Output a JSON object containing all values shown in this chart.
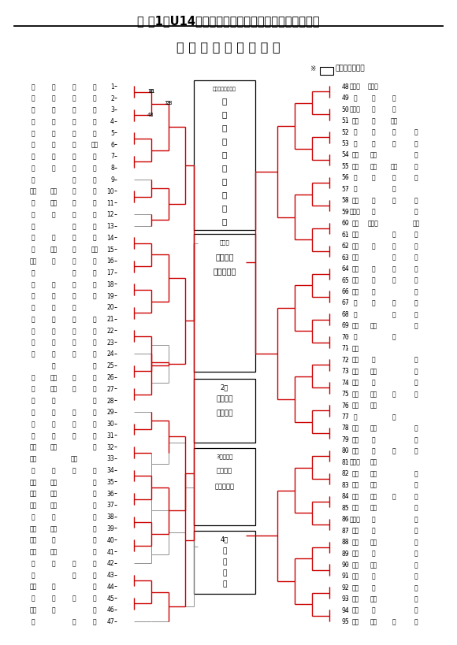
{
  "title": "兼 第1回U14秋季バスケットボール大会東部地区予選",
  "subtitle": "《 中 学 校 女 子 の 部 》",
  "note_text": "が県大会出場校",
  "center_winner": "春\n日\n部\n市\n立\n豊\n野\n中\n学\n校",
  "center_winner_label": "関東大会出場校枠",
  "second_label": "2位",
  "second_school": "越谷市立\n西中学校",
  "third_label": "3位決定戦",
  "third_school": "越谷市立\n富士中学校",
  "fourth_label": "4位",
  "fourth_school": "越\n谷\n富\n士",
  "semi_label": "準優勝",
  "semi_school": "松伏町立\n松伏中学校",
  "left_teams": [
    [
      "越",
      "谷",
      "中",
      "央"
    ],
    [
      "三",
      "郷",
      "瑞",
      "穂"
    ],
    [
      "春",
      "日",
      "部",
      "東"
    ],
    [
      "草",
      "加",
      "谷",
      "塚"
    ],
    [
      "久",
      "喜",
      "太",
      "東"
    ],
    [
      "春",
      "日",
      "部",
      "豊野"
    ],
    [
      "草",
      "加",
      "瀬",
      "崎"
    ],
    [
      "越",
      "谷",
      "北",
      "隠"
    ],
    [
      "行",
      "",
      "田",
      "忍"
    ],
    [
      "越谷",
      "獨協",
      "埼",
      "玉"
    ],
    [
      "蓮",
      "田黒",
      "浜",
      "西"
    ],
    [
      "久",
      "喜",
      "善",
      "蒲"
    ],
    [
      "三",
      "",
      "郷",
      "南"
    ],
    [
      "八",
      "湖",
      "大",
      "原"
    ],
    [
      "春",
      "日部",
      "緑",
      "稲田"
    ],
    [
      "三郷",
      "早",
      "稲",
      "田"
    ],
    [
      "草",
      "",
      "加",
      "栄"
    ],
    [
      "松",
      "伏",
      "松",
      "伏"
    ],
    [
      "蓮",
      "田",
      "黒",
      "浜"
    ],
    [
      "越",
      "谷",
      "北",
      ""
    ],
    [
      "草",
      "加",
      "川",
      "柳"
    ],
    [
      "三",
      "郷",
      "前",
      "川"
    ],
    [
      "越",
      "谷",
      "大",
      "袋"
    ],
    [
      "越",
      "谷",
      "富",
      "士"
    ],
    [
      "",
      "生",
      "",
      "南"
    ],
    [
      "春",
      "日部",
      "武",
      "里"
    ],
    [
      "久",
      "喜栗",
      "橋",
      "西"
    ],
    [
      "越",
      "谷",
      "",
      "南"
    ],
    [
      "杉",
      "戸",
      "広",
      "島"
    ],
    [
      "加",
      "須",
      "明",
      "和"
    ],
    [
      "宮",
      "代",
      "百",
      "間"
    ],
    [
      "越谷",
      "大相",
      "",
      "模"
    ],
    [
      "草加",
      "",
      "草加",
      ""
    ],
    [
      "越",
      "谷",
      "新",
      "栄"
    ],
    [
      "加須",
      "北川",
      "",
      "辺"
    ],
    [
      "久喜",
      "久喜",
      "",
      "東"
    ],
    [
      "加須",
      "大利",
      "",
      "根"
    ],
    [
      "羽",
      "生",
      "",
      "西"
    ],
    [
      "加須",
      "加須",
      "",
      "西"
    ],
    [
      "草加",
      "青",
      "",
      "柳"
    ],
    [
      "越谷",
      "武蔵",
      "",
      "野"
    ],
    [
      "杉",
      "戸",
      "杉",
      "戸"
    ],
    [
      "越",
      "",
      "谷",
      "東"
    ],
    [
      "越谷",
      "栄",
      "",
      "進"
    ],
    [
      "行",
      "田",
      "行",
      "田"
    ],
    [
      "草加",
      "新",
      "",
      "栄"
    ],
    [
      "吉",
      "",
      "川",
      "東"
    ]
  ],
  "right_teams": [
    [
      "春日部",
      "春日部",
      "",
      ""
    ],
    [
      "越",
      "谷",
      "西",
      ""
    ],
    [
      "春日部",
      "大",
      "沼",
      ""
    ],
    [
      "草加",
      "両",
      "新田",
      ""
    ],
    [
      "私",
      "立",
      "昌",
      "平"
    ],
    [
      "白",
      "岡",
      "茜",
      "萩"
    ],
    [
      "宮代",
      "須賀",
      "",
      "東"
    ],
    [
      "越谷",
      "蒲生",
      "彦成",
      "南"
    ],
    [
      "三",
      "郷",
      "彦",
      "成"
    ],
    [
      "吉",
      "",
      "川",
      ""
    ],
    [
      "宮代",
      "前",
      "原",
      "飾"
    ],
    [
      "春日部",
      "葛",
      "",
      "飾"
    ],
    [
      "私立",
      "春日部",
      "",
      "共栄"
    ],
    [
      "三郷",
      "",
      "北",
      "栗"
    ],
    [
      "草加",
      "花",
      "栗",
      "田"
    ],
    [
      "草加",
      "",
      "栗",
      "田"
    ],
    [
      "羽生",
      "東",
      "手",
      "野"
    ],
    [
      "行田",
      "長",
      "野",
      "岡"
    ],
    [
      "行田",
      "白",
      "",
      "岡"
    ],
    [
      "手",
      "平",
      "白",
      "岡"
    ],
    [
      "久",
      "",
      "白",
      "岡"
    ],
    [
      "久喜",
      "久喜",
      "",
      "西"
    ],
    [
      "八",
      "",
      "潮",
      ""
    ],
    [
      "八潮",
      "",
      "",
      ""
    ],
    [
      "八潮",
      "平",
      "",
      "方"
    ],
    [
      "越谷",
      "平方",
      "",
      "春"
    ],
    [
      "越谷",
      "春",
      "",
      "南"
    ],
    [
      "蓮田",
      "蓮田",
      "南",
      "糸"
    ],
    [
      "三郷",
      "彦成",
      "",
      ""
    ],
    [
      "八",
      "",
      "潮",
      ""
    ],
    [
      "久喜",
      "幸手",
      "",
      "東"
    ],
    [
      "草加",
      "新",
      "",
      "田"
    ],
    [
      "草加",
      "田",
      "太",
      "田"
    ],
    [
      "春日部",
      "銀汀",
      "",
      ""
    ],
    [
      "草加",
      "杉並",
      "",
      "堤"
    ],
    [
      "草加",
      "橋東",
      "",
      "堤"
    ],
    [
      "加須",
      "加須",
      "平",
      "城"
    ],
    [
      "越谷",
      "千間",
      "",
      "台"
    ],
    [
      "春日部",
      "郷",
      "",
      "栄"
    ],
    [
      "越谷",
      "光",
      "",
      "津"
    ],
    [
      "越谷",
      "光陽",
      "",
      "津"
    ],
    [
      "白岡",
      "白",
      "",
      "岡"
    ],
    [
      "吉川",
      "中央",
      "",
      "野"
    ],
    [
      "越谷",
      "篠",
      "",
      "塚"
    ],
    [
      "行田",
      "西",
      "",
      "宮"
    ],
    [
      "久喜",
      "久喜",
      "",
      "宮"
    ],
    [
      "行田",
      "見",
      "",
      "沼"
    ],
    [
      "松伏",
      "松伏",
      "第",
      "二"
    ]
  ],
  "bg_color": "#ffffff",
  "red": "#cc0000",
  "gray": "#888888",
  "black": "#000000"
}
